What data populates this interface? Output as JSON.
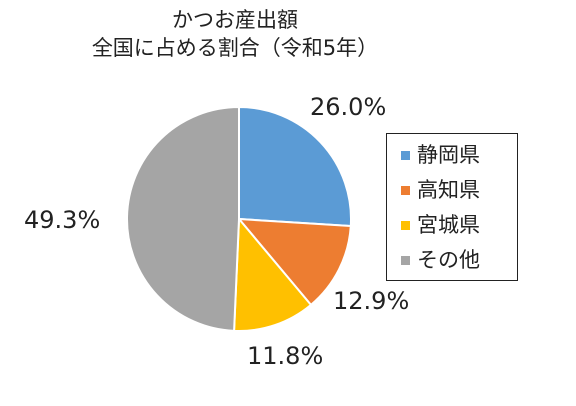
{
  "chart_data": {
    "type": "pie",
    "title": [
      "かつお産出額",
      "全国に占める割合（令和5年）"
    ],
    "categories": [
      "静岡県",
      "高知県",
      "宮城県",
      "その他"
    ],
    "values": [
      26.0,
      12.9,
      11.8,
      49.3
    ],
    "data_labels": [
      "26.0%",
      "12.9%",
      "11.8%",
      "49.3%"
    ],
    "colors": [
      "#5B9BD5",
      "#ED7D31",
      "#FFC000",
      "#A5A5A5"
    ],
    "legend_position": "right"
  }
}
